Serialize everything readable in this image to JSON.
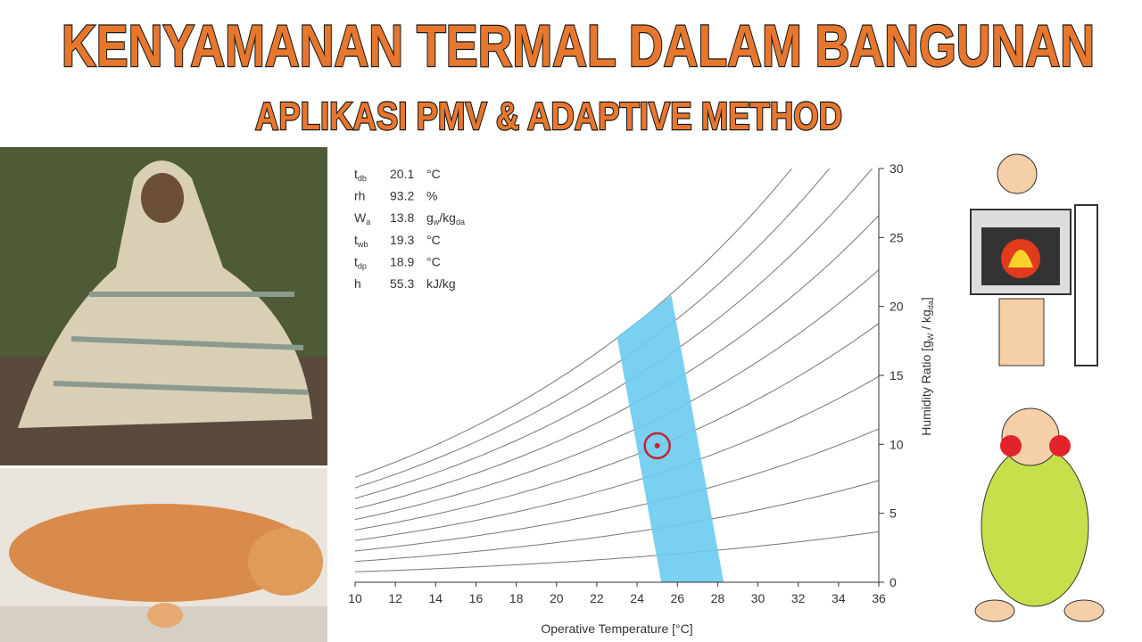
{
  "header": {
    "title": "KENYAMANAN TERMAL DALAM BANGUNAN",
    "subtitle": "APLIKASI PMV & ADAPTIVE METHOD"
  },
  "chart_data": {
    "type": "psychrometric",
    "readout": [
      {
        "symbol": "t",
        "sub": "db",
        "value": 20.1,
        "unit": "°C"
      },
      {
        "symbol": "rh",
        "value": 93.2,
        "unit": "%"
      },
      {
        "symbol": "W",
        "sub": "a",
        "value": 13.8,
        "unit_parts": [
          {
            "text": "g"
          },
          {
            "sub": "w"
          },
          {
            "text": "/kg"
          },
          {
            "sub": "da"
          }
        ]
      },
      {
        "symbol": "t",
        "sub": "wb",
        "value": 19.3,
        "unit": "°C"
      },
      {
        "symbol": "t",
        "sub": "dp",
        "value": 18.9,
        "unit": "°C"
      },
      {
        "symbol": "h",
        "value": 55.3,
        "unit": "kJ/kg"
      }
    ],
    "x_label": "Operative Temperature [°C]",
    "y_label_parts": [
      {
        "text": "Humidity Ratio [g"
      },
      {
        "sub": "W"
      },
      {
        "text": " / kg"
      },
      {
        "sub": "da"
      },
      {
        "text": "]"
      }
    ],
    "xlim": [
      10,
      36
    ],
    "xticks": [
      10,
      12,
      14,
      16,
      18,
      20,
      22,
      24,
      26,
      28,
      30,
      32,
      34,
      36
    ],
    "ylim": [
      0,
      30
    ],
    "yticks": [
      0,
      5,
      10,
      15,
      20,
      25,
      30
    ],
    "rh_curves": [
      10,
      20,
      30,
      40,
      50,
      60,
      70,
      80,
      90,
      100
    ],
    "curve_color": "#777777",
    "comfort_zone": {
      "x": [
        23.0,
        25.7,
        28.3,
        25.2
      ],
      "y": [
        17.8,
        20.8,
        0,
        0
      ],
      "color": "#6ccbef"
    },
    "point": {
      "x": 25.0,
      "y": 9.9,
      "color": "#c0262c"
    }
  }
}
